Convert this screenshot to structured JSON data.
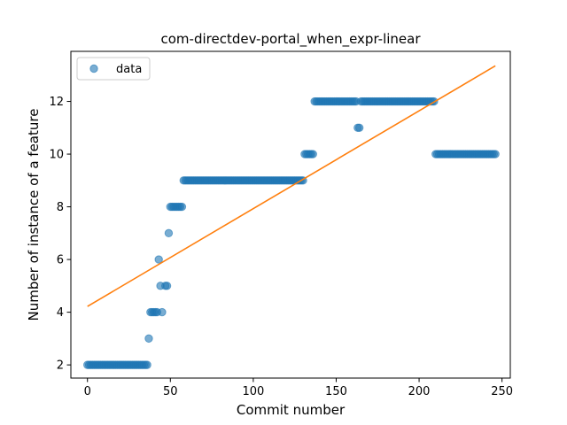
{
  "chart_data": {
    "type": "scatter",
    "title": "com-directdev-portal_when_expr-linear",
    "xlabel": "Commit number",
    "ylabel": "Number of instance of a feature",
    "xlim": [
      -10,
      255
    ],
    "ylim": [
      1.5,
      13.9
    ],
    "xticks": [
      0,
      50,
      100,
      150,
      200,
      250
    ],
    "yticks": [
      2,
      4,
      6,
      8,
      10,
      12
    ],
    "legend": {
      "position": "top-left",
      "entries": [
        "data"
      ]
    },
    "grid": false,
    "colors": {
      "data": "#1f77b4",
      "fit": "#ff7f0e"
    },
    "series": [
      {
        "name": "data",
        "kind": "scatter",
        "segments": [
          {
            "x_from": 0,
            "x_to": 36,
            "y": 2
          },
          {
            "x": 37,
            "y": 3
          },
          {
            "x_from": 38,
            "x_to": 42,
            "y": 4
          },
          {
            "x": 43,
            "y": 6
          },
          {
            "x": 44,
            "y": 5
          },
          {
            "x": 45,
            "y": 4
          },
          {
            "x_from": 47,
            "x_to": 48,
            "y": 5
          },
          {
            "x": 49,
            "y": 7
          },
          {
            "x_from": 50,
            "x_to": 57,
            "y": 8
          },
          {
            "x_from": 58,
            "x_to": 130,
            "y": 9
          },
          {
            "x_from": 131,
            "x_to": 136,
            "y": 10
          },
          {
            "x_from": 137,
            "x_to": 162,
            "y": 12
          },
          {
            "x_from": 163,
            "x_to": 164,
            "y": 11
          },
          {
            "x_from": 165,
            "x_to": 209,
            "y": 12
          },
          {
            "x_from": 210,
            "x_to": 246,
            "y": 10
          }
        ]
      },
      {
        "kind": "line",
        "points": [
          [
            0,
            4.22
          ],
          [
            246,
            13.35
          ]
        ]
      }
    ]
  }
}
